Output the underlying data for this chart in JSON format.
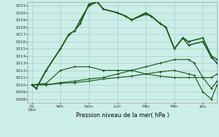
{
  "xlabel": "Pression niveau de la mer( hPa )",
  "background_color": "#cceee8",
  "grid_color": "#aacccc",
  "line_color": "#1a5c1a",
  "ylim": [
    1007.5,
    1021.5
  ],
  "yticks": [
    1008,
    1009,
    1010,
    1011,
    1012,
    1013,
    1014,
    1015,
    1016,
    1017,
    1018,
    1019,
    1020,
    1021
  ],
  "xtick_positions": [
    0,
    1,
    2,
    3,
    4,
    5,
    6
  ],
  "xtick_labels": [
    "Sa\nDim",
    "Ven",
    "Sam",
    "Lun",
    "Mar",
    "Mer",
    "Jeu"
  ],
  "xlim": [
    -0.15,
    6.5
  ],
  "series": [
    {
      "x": [
        0.0,
        0.15,
        0.5,
        1.0,
        1.3,
        1.5,
        1.7,
        2.0,
        2.3,
        2.5,
        3.0,
        3.3,
        3.5,
        4.0,
        4.2,
        4.5,
        4.7,
        5.0,
        5.3,
        5.5,
        6.0,
        6.3,
        6.5
      ],
      "y": [
        1010.0,
        1009.5,
        1012.0,
        1015.0,
        1017.0,
        1017.5,
        1018.5,
        1021.2,
        1021.5,
        1020.5,
        1020.0,
        1019.5,
        1019.0,
        1020.0,
        1019.5,
        1018.5,
        1018.0,
        1015.0,
        1016.5,
        1016.0,
        1016.5,
        1014.0,
        1013.5
      ]
    },
    {
      "x": [
        0.0,
        0.15,
        0.5,
        1.0,
        1.3,
        1.5,
        1.7,
        2.0,
        2.3,
        2.5,
        3.0,
        3.3,
        3.5,
        4.0,
        4.2,
        4.5,
        4.7,
        5.0,
        5.3,
        5.5,
        6.0,
        6.3,
        6.5
      ],
      "y": [
        1010.0,
        1009.5,
        1012.0,
        1015.0,
        1017.0,
        1017.5,
        1019.0,
        1021.0,
        1021.5,
        1020.5,
        1020.0,
        1019.5,
        1019.0,
        1019.8,
        1019.5,
        1018.5,
        1018.0,
        1015.0,
        1016.5,
        1015.5,
        1016.0,
        1013.8,
        1013.0
      ]
    },
    {
      "x": [
        0.0,
        0.5,
        1.0,
        1.5,
        2.0,
        2.5,
        3.0,
        3.5,
        4.0,
        4.5,
        5.0,
        5.5,
        6.0,
        6.3,
        6.5
      ],
      "y": [
        1010.0,
        1010.2,
        1012.0,
        1012.5,
        1012.5,
        1012.0,
        1012.0,
        1012.0,
        1011.5,
        1011.2,
        1011.0,
        1011.0,
        1011.0,
        1011.0,
        1011.5
      ]
    },
    {
      "x": [
        0.0,
        0.5,
        1.0,
        1.5,
        2.0,
        2.5,
        3.0,
        3.5,
        4.0,
        4.5,
        5.0,
        5.5,
        5.7,
        6.0,
        6.3,
        6.5
      ],
      "y": [
        1010.0,
        1010.0,
        1010.3,
        1010.5,
        1010.8,
        1011.0,
        1011.5,
        1012.0,
        1012.5,
        1013.0,
        1013.5,
        1013.5,
        1013.0,
        1011.0,
        1009.5,
        1010.5
      ]
    },
    {
      "x": [
        0.0,
        0.5,
        1.0,
        1.5,
        2.0,
        2.5,
        3.0,
        3.5,
        4.0,
        4.5,
        5.0,
        5.5,
        5.7,
        6.0,
        6.3,
        6.5
      ],
      "y": [
        1010.0,
        1010.0,
        1010.2,
        1010.3,
        1010.5,
        1010.8,
        1011.0,
        1011.2,
        1011.5,
        1011.8,
        1012.0,
        1011.5,
        1011.3,
        1009.0,
        1008.0,
        1010.0
      ]
    }
  ]
}
